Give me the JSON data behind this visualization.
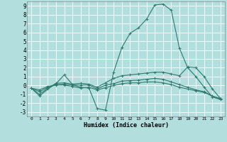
{
  "xlabel": "Humidex (Indice chaleur)",
  "bg_color": "#b2dede",
  "grid_color": "#ffffff",
  "line_color": "#2d7a6e",
  "xlim": [
    -0.5,
    23.5
  ],
  "ylim": [
    -3.5,
    9.5
  ],
  "xticks": [
    0,
    1,
    2,
    3,
    4,
    5,
    6,
    7,
    8,
    9,
    10,
    11,
    12,
    13,
    14,
    15,
    16,
    17,
    18,
    19,
    20,
    21,
    22,
    23
  ],
  "yticks": [
    -3,
    -2,
    -1,
    0,
    1,
    2,
    3,
    4,
    5,
    6,
    7,
    8,
    9
  ],
  "lines": [
    [
      0,
      -0.3,
      1,
      -1.2,
      2,
      -0.4,
      3,
      0.2,
      4,
      1.2,
      5,
      0.1,
      6,
      -0.2,
      7,
      -0.3,
      8,
      -2.6,
      9,
      -2.8,
      10,
      1.5,
      11,
      4.3,
      12,
      5.9,
      13,
      6.5,
      14,
      7.5,
      15,
      9.1,
      16,
      9.2,
      17,
      8.5,
      18,
      4.2,
      19,
      2.0,
      20,
      1.0,
      21,
      -0.2,
      22,
      -1.3,
      23,
      -1.6
    ],
    [
      0,
      -0.3,
      1,
      -1.0,
      2,
      -0.3,
      3,
      0.25,
      4,
      0.3,
      5,
      0.15,
      6,
      0.25,
      7,
      0.15,
      8,
      -0.2,
      9,
      0.3,
      10,
      0.8,
      11,
      1.1,
      12,
      1.2,
      13,
      1.3,
      14,
      1.4,
      15,
      1.5,
      16,
      1.5,
      17,
      1.3,
      18,
      1.1,
      19,
      2.1,
      20,
      2.0,
      21,
      1.0,
      22,
      -0.4,
      23,
      -1.5
    ],
    [
      0,
      -0.3,
      1,
      -0.7,
      2,
      -0.2,
      3,
      0.1,
      4,
      0.15,
      5,
      0.05,
      6,
      0.05,
      7,
      0.05,
      8,
      -0.4,
      9,
      0.05,
      10,
      0.2,
      11,
      0.5,
      12,
      0.55,
      13,
      0.6,
      14,
      0.7,
      15,
      0.8,
      16,
      0.7,
      17,
      0.4,
      18,
      0.1,
      19,
      -0.2,
      20,
      -0.5,
      21,
      -0.7,
      22,
      -1.2,
      23,
      -1.5
    ],
    [
      0,
      -0.3,
      1,
      -0.5,
      2,
      -0.1,
      3,
      0.05,
      4,
      0.05,
      5,
      -0.1,
      6,
      -0.3,
      7,
      -0.2,
      8,
      -0.5,
      9,
      -0.25,
      10,
      0.0,
      11,
      0.2,
      12,
      0.3,
      13,
      0.3,
      14,
      0.4,
      15,
      0.4,
      16,
      0.3,
      17,
      0.1,
      18,
      -0.2,
      19,
      -0.4,
      20,
      -0.6,
      21,
      -0.8,
      22,
      -1.2,
      23,
      -1.5
    ]
  ]
}
